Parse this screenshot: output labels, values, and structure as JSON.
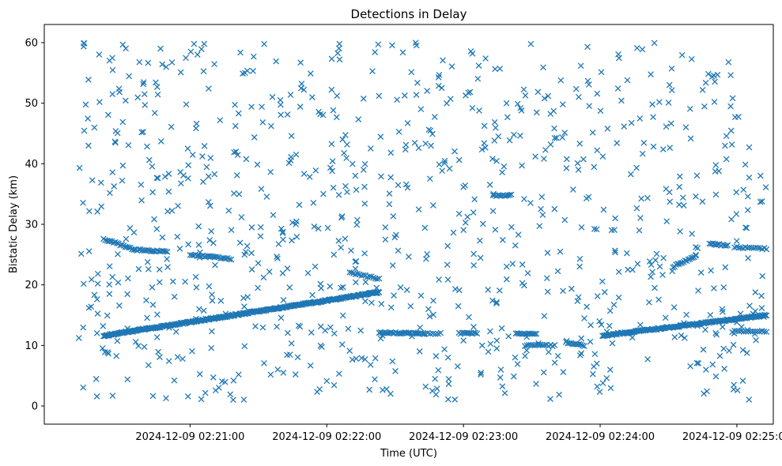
{
  "chart_data": {
    "type": "scatter",
    "title": "Detections in Delay",
    "xlabel": "Time (UTC)",
    "ylabel": "Bistatic Delay (km)",
    "xlim_seconds_from_0220": [
      -4,
      316
    ],
    "ylim": [
      -3,
      63
    ],
    "x_ticks": [
      {
        "t": 60,
        "label": "2024-12-09 02:21:00"
      },
      {
        "t": 120,
        "label": "2024-12-09 02:22:00"
      },
      {
        "t": 180,
        "label": "2024-12-09 02:23:00"
      },
      {
        "t": 240,
        "label": "2024-12-09 02:24:00"
      },
      {
        "t": 300,
        "label": "2024-12-09 02:25:00"
      }
    ],
    "y_ticks": [
      0,
      10,
      20,
      30,
      40,
      50,
      60
    ],
    "marker": "x",
    "color": "#1f77b4",
    "noise": {
      "count": 900,
      "t_range": [
        11,
        313
      ],
      "delay_range": [
        1,
        60
      ],
      "seed": 7
    },
    "tracks": [
      {
        "name": "track-1",
        "t_start": 22,
        "t_end": 143,
        "delay_start": 11.6,
        "delay_end": 18.8,
        "points": 330
      },
      {
        "name": "track-2",
        "t_start": 241,
        "t_end": 313,
        "delay_start": 11.6,
        "delay_end": 15.0,
        "points": 170
      },
      {
        "name": "track-3",
        "t_start": 22,
        "t_end": 36,
        "delay_start": 27.6,
        "delay_end": 25.8,
        "points": 20
      },
      {
        "name": "track-4",
        "t_start": 36,
        "t_end": 50,
        "delay_start": 25.8,
        "delay_end": 25.5,
        "points": 20
      },
      {
        "name": "track-5",
        "t_start": 60,
        "t_end": 78,
        "delay_start": 25.0,
        "delay_end": 24.3,
        "points": 24
      },
      {
        "name": "track-6",
        "t_start": 130,
        "t_end": 143,
        "delay_start": 22.0,
        "delay_end": 21.0,
        "points": 16
      },
      {
        "name": "track-7",
        "t_start": 143,
        "t_end": 162,
        "delay_start": 12.1,
        "delay_end": 12.0,
        "points": 30
      },
      {
        "name": "track-8",
        "t_start": 178,
        "t_end": 186,
        "delay_start": 12.0,
        "delay_end": 12.0,
        "points": 12
      },
      {
        "name": "track-9",
        "t_start": 193,
        "t_end": 201,
        "delay_start": 34.7,
        "delay_end": 34.8,
        "points": 12
      },
      {
        "name": "track-10",
        "t_start": 203,
        "t_end": 212,
        "delay_start": 12.0,
        "delay_end": 11.9,
        "points": 14
      },
      {
        "name": "track-11",
        "t_start": 207,
        "t_end": 220,
        "delay_start": 10.0,
        "delay_end": 10.0,
        "points": 16
      },
      {
        "name": "track-12",
        "t_start": 225,
        "t_end": 233,
        "delay_start": 10.5,
        "delay_end": 10.0,
        "points": 12
      },
      {
        "name": "track-13",
        "t_start": 272,
        "t_end": 282,
        "delay_start": 23.0,
        "delay_end": 24.8,
        "points": 16
      },
      {
        "name": "track-14",
        "t_start": 288,
        "t_end": 296,
        "delay_start": 26.8,
        "delay_end": 26.5,
        "points": 12
      },
      {
        "name": "track-15",
        "t_start": 299,
        "t_end": 313,
        "delay_start": 26.2,
        "delay_end": 26.0,
        "points": 16
      },
      {
        "name": "track-16",
        "t_start": 298,
        "t_end": 313,
        "delay_start": 12.3,
        "delay_end": 12.3,
        "points": 16
      },
      {
        "name": "track-17",
        "t_start": 162,
        "t_end": 170,
        "delay_start": 12.0,
        "delay_end": 12.0,
        "points": 8
      }
    ]
  }
}
